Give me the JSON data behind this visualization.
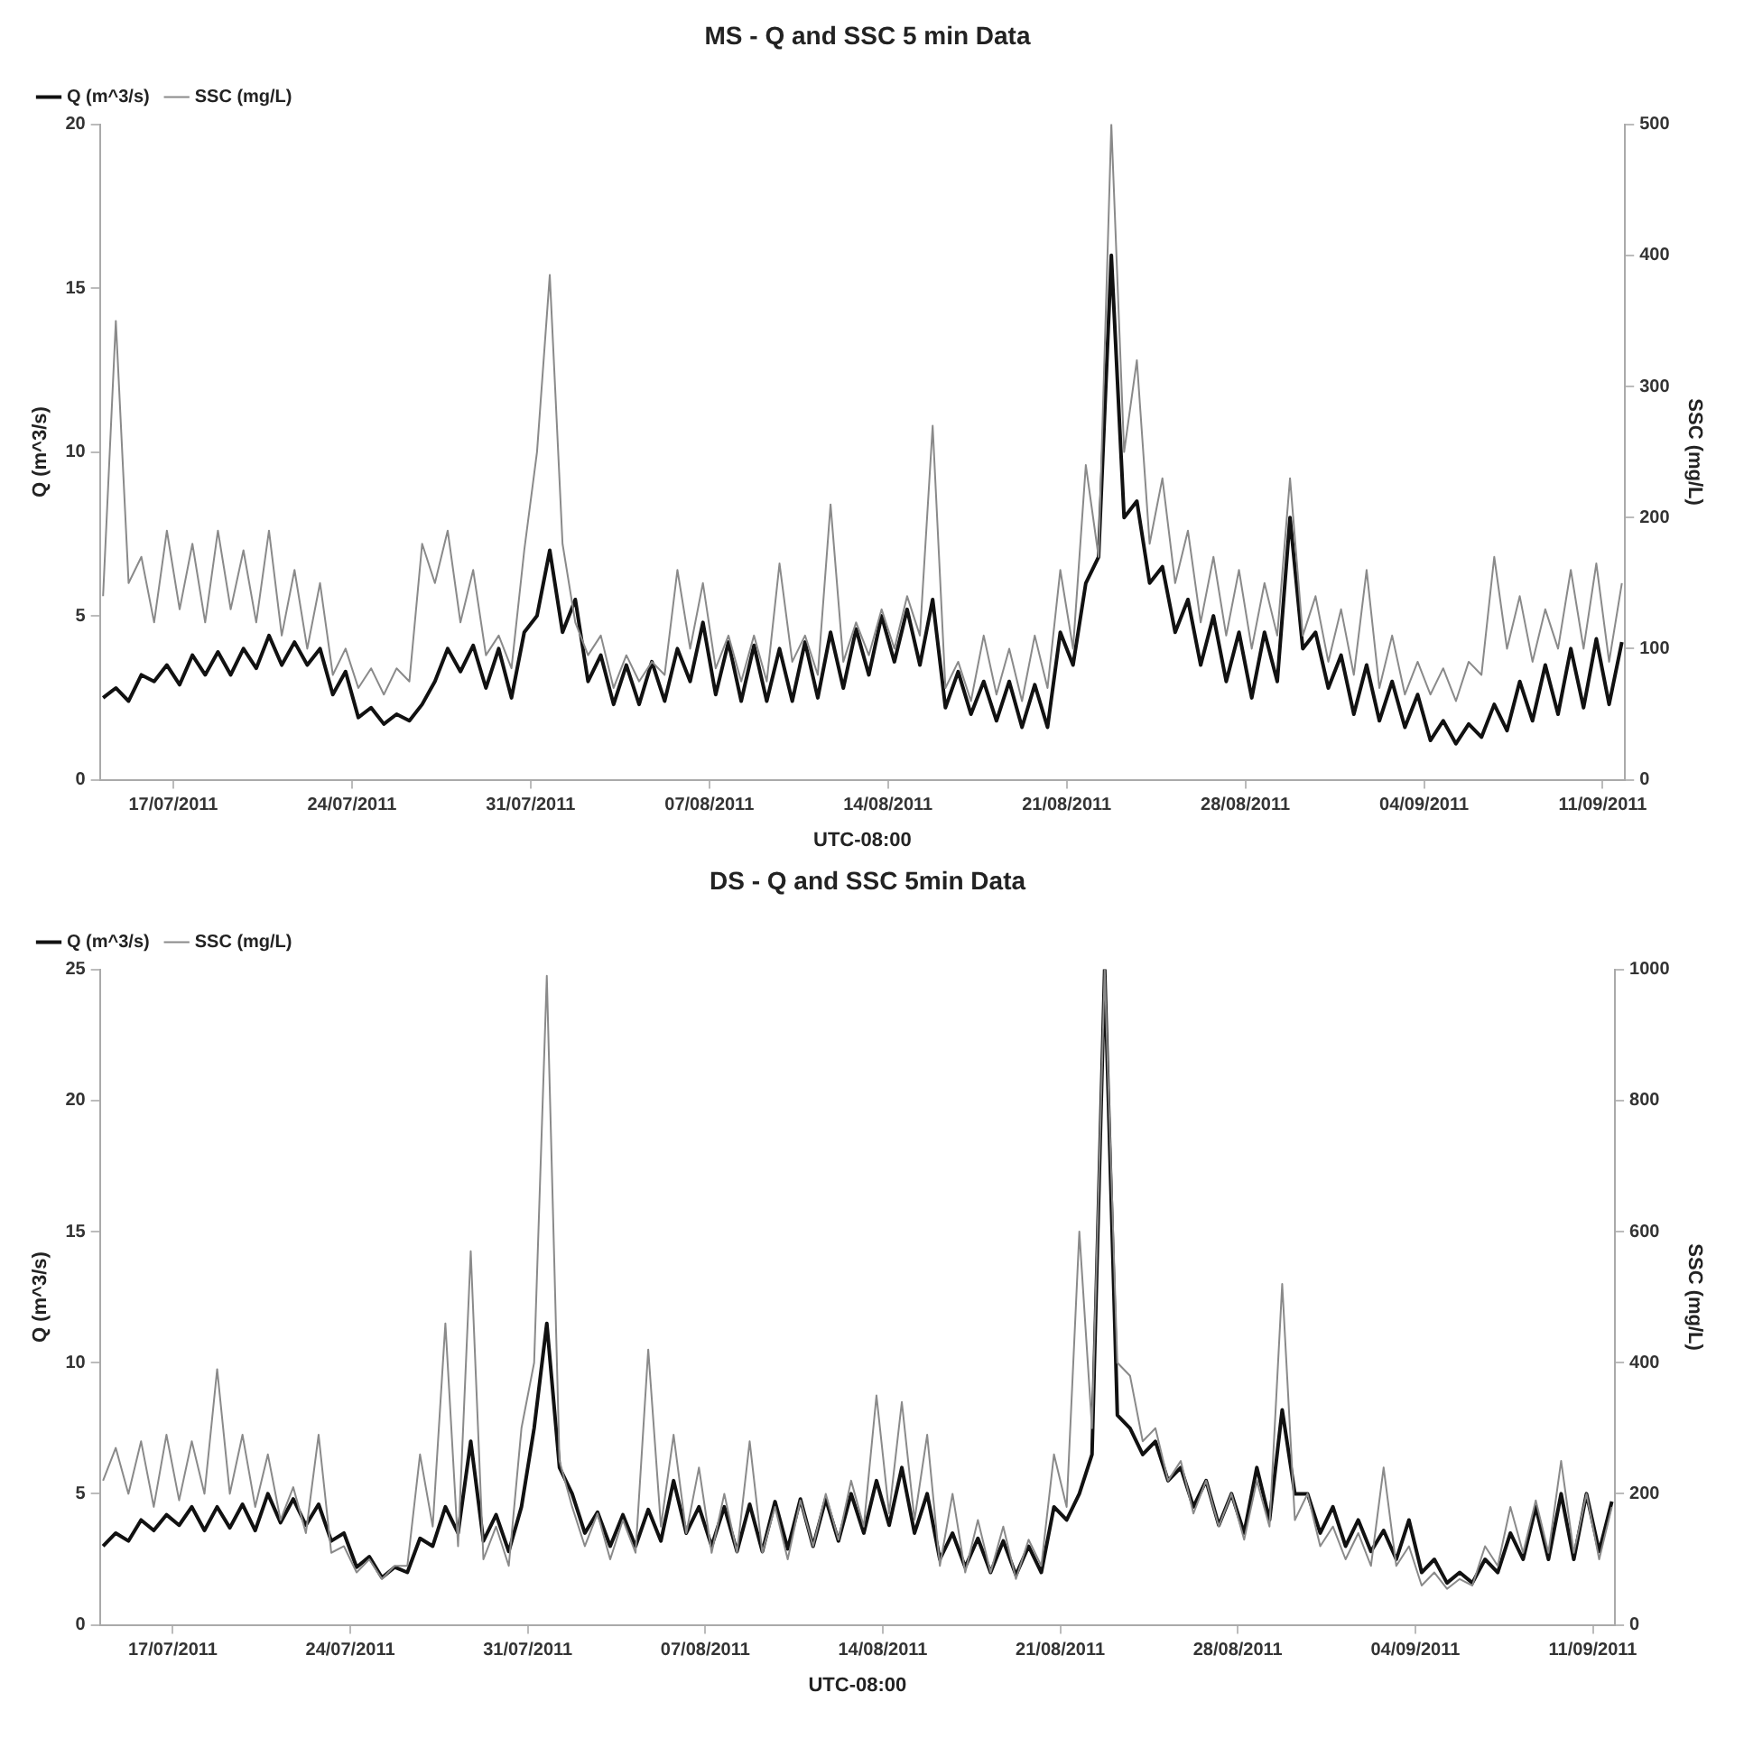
{
  "chart_data": [
    {
      "type": "line",
      "title": "MS - Q and SSC 5 min Data",
      "xlabel": "UTC-08:00",
      "ylabel": "Q (m^3/s)",
      "y2label": "SSC (mg/L)",
      "legend": "top left",
      "grid": false,
      "marker": "none",
      "xlim": [
        "2011-07-14T03:00",
        "2011-09-11T21:00"
      ],
      "xticks": [
        {
          "value": "2011-07-17",
          "label": "17/07/2011"
        },
        {
          "value": "2011-07-24",
          "label": "24/07/2011"
        },
        {
          "value": "2011-07-31",
          "label": "31/07/2011"
        },
        {
          "value": "2011-08-07",
          "label": "07/08/2011"
        },
        {
          "value": "2011-08-14",
          "label": "14/08/2011"
        },
        {
          "value": "2011-08-21",
          "label": "21/08/2011"
        },
        {
          "value": "2011-08-28",
          "label": "28/08/2011"
        },
        {
          "value": "2011-09-04",
          "label": "04/09/2011"
        },
        {
          "value": "2011-09-11",
          "label": "11/09/2011"
        }
      ],
      "ylim": [
        0,
        20
      ],
      "yticks": [
        0,
        5,
        10,
        15,
        20
      ],
      "y2lim": [
        0,
        500
      ],
      "y2ticks": [
        0,
        100,
        200,
        300,
        400,
        500
      ],
      "x": [
        "2011-07-14T06:00",
        "2011-07-14T18:00",
        "2011-07-15T06:00",
        "2011-07-15T18:00",
        "2011-07-16T06:00",
        "2011-07-16T18:00",
        "2011-07-17T06:00",
        "2011-07-17T18:00",
        "2011-07-18T06:00",
        "2011-07-18T18:00",
        "2011-07-19T06:00",
        "2011-07-19T18:00",
        "2011-07-20T06:00",
        "2011-07-20T18:00",
        "2011-07-21T06:00",
        "2011-07-21T18:00",
        "2011-07-22T06:00",
        "2011-07-22T18:00",
        "2011-07-23T06:00",
        "2011-07-23T18:00",
        "2011-07-24T06:00",
        "2011-07-24T18:00",
        "2011-07-25T06:00",
        "2011-07-25T18:00",
        "2011-07-26T06:00",
        "2011-07-26T18:00",
        "2011-07-27T06:00",
        "2011-07-27T18:00",
        "2011-07-28T06:00",
        "2011-07-28T18:00",
        "2011-07-29T06:00",
        "2011-07-29T18:00",
        "2011-07-30T06:00",
        "2011-07-30T18:00",
        "2011-07-31T06:00",
        "2011-07-31T18:00",
        "2011-08-01T06:00",
        "2011-08-01T18:00",
        "2011-08-02T06:00",
        "2011-08-02T18:00",
        "2011-08-03T06:00",
        "2011-08-03T18:00",
        "2011-08-04T06:00",
        "2011-08-04T18:00",
        "2011-08-05T06:00",
        "2011-08-05T18:00",
        "2011-08-06T06:00",
        "2011-08-06T18:00",
        "2011-08-07T06:00",
        "2011-08-07T18:00",
        "2011-08-08T06:00",
        "2011-08-08T18:00",
        "2011-08-09T06:00",
        "2011-08-09T18:00",
        "2011-08-10T06:00",
        "2011-08-10T18:00",
        "2011-08-11T06:00",
        "2011-08-11T18:00",
        "2011-08-12T06:00",
        "2011-08-12T18:00",
        "2011-08-13T06:00",
        "2011-08-13T18:00",
        "2011-08-14T06:00",
        "2011-08-14T18:00",
        "2011-08-15T06:00",
        "2011-08-15T18:00",
        "2011-08-16T06:00",
        "2011-08-16T18:00",
        "2011-08-17T06:00",
        "2011-08-17T18:00",
        "2011-08-18T06:00",
        "2011-08-18T18:00",
        "2011-08-19T06:00",
        "2011-08-19T18:00",
        "2011-08-20T06:00",
        "2011-08-20T18:00",
        "2011-08-21T06:00",
        "2011-08-21T18:00",
        "2011-08-22T06:00",
        "2011-08-22T18:00",
        "2011-08-23T06:00",
        "2011-08-23T18:00",
        "2011-08-24T06:00",
        "2011-08-24T18:00",
        "2011-08-25T06:00",
        "2011-08-25T18:00",
        "2011-08-26T06:00",
        "2011-08-26T18:00",
        "2011-08-27T06:00",
        "2011-08-27T18:00",
        "2011-08-28T06:00",
        "2011-08-28T18:00",
        "2011-08-29T06:00",
        "2011-08-29T18:00",
        "2011-08-30T06:00",
        "2011-08-30T18:00",
        "2011-08-31T06:00",
        "2011-08-31T18:00",
        "2011-09-01T06:00",
        "2011-09-01T18:00",
        "2011-09-02T06:00",
        "2011-09-02T18:00",
        "2011-09-03T06:00",
        "2011-09-03T18:00",
        "2011-09-04T06:00",
        "2011-09-04T18:00",
        "2011-09-05T06:00",
        "2011-09-05T18:00",
        "2011-09-06T06:00",
        "2011-09-06T18:00",
        "2011-09-07T06:00",
        "2011-09-07T18:00",
        "2011-09-08T06:00",
        "2011-09-08T18:00",
        "2011-09-09T06:00",
        "2011-09-09T18:00",
        "2011-09-10T06:00",
        "2011-09-10T18:00",
        "2011-09-11T06:00",
        "2011-09-11T18:00"
      ],
      "series": [
        {
          "name": "SSC (mg/L)",
          "color": "#8a8a8a",
          "axis": "y2",
          "values": [
            140,
            350,
            150,
            170,
            120,
            190,
            130,
            180,
            120,
            190,
            130,
            175,
            120,
            190,
            110,
            160,
            100,
            150,
            80,
            100,
            70,
            85,
            65,
            85,
            75,
            180,
            150,
            190,
            120,
            160,
            95,
            110,
            85,
            175,
            250,
            385,
            180,
            120,
            95,
            110,
            70,
            95,
            75,
            90,
            80,
            160,
            100,
            150,
            85,
            110,
            75,
            110,
            75,
            165,
            90,
            110,
            80,
            210,
            90,
            120,
            95,
            130,
            100,
            140,
            110,
            270,
            70,
            90,
            60,
            110,
            65,
            100,
            60,
            110,
            70,
            160,
            100,
            240,
            170,
            500,
            250,
            320,
            180,
            230,
            150,
            190,
            120,
            170,
            110,
            160,
            100,
            150,
            110,
            230,
            110,
            140,
            90,
            130,
            80,
            160,
            70,
            110,
            65,
            90,
            65,
            85,
            60,
            90,
            80,
            170,
            100,
            140,
            90,
            130,
            100,
            160,
            100,
            165,
            90,
            150
          ]
        },
        {
          "name": "Q (m^3/s)",
          "color": "#111111",
          "values": [
            2.5,
            2.8,
            2.4,
            3.2,
            3.0,
            3.5,
            2.9,
            3.8,
            3.2,
            3.9,
            3.2,
            4.0,
            3.4,
            4.4,
            3.5,
            4.2,
            3.5,
            4.0,
            2.6,
            3.3,
            1.9,
            2.2,
            1.7,
            2.0,
            1.8,
            2.3,
            3.0,
            4.0,
            3.3,
            4.1,
            2.8,
            4.0,
            2.5,
            4.5,
            5.0,
            7.0,
            4.5,
            5.5,
            3.0,
            3.8,
            2.3,
            3.5,
            2.3,
            3.6,
            2.4,
            4.0,
            3.0,
            4.8,
            2.6,
            4.2,
            2.4,
            4.1,
            2.4,
            4.0,
            2.4,
            4.2,
            2.5,
            4.5,
            2.8,
            4.6,
            3.2,
            5.0,
            3.6,
            5.2,
            3.5,
            5.5,
            2.2,
            3.3,
            2.0,
            3.0,
            1.8,
            3.0,
            1.6,
            2.9,
            1.6,
            4.5,
            3.5,
            6.0,
            6.8,
            16.0,
            8.0,
            8.5,
            6.0,
            6.5,
            4.5,
            5.5,
            3.5,
            5.0,
            3.0,
            4.5,
            2.5,
            4.5,
            3.0,
            8.0,
            4.0,
            4.5,
            2.8,
            3.8,
            2.0,
            3.5,
            1.8,
            3.0,
            1.6,
            2.6,
            1.2,
            1.8,
            1.1,
            1.7,
            1.3,
            2.3,
            1.5,
            3.0,
            1.8,
            3.5,
            2.0,
            4.0,
            2.2,
            4.3,
            2.3,
            4.2
          ]
        }
      ]
    },
    {
      "type": "line",
      "title": "DS - Q and SSC 5min Data",
      "xlabel": "UTC-08:00",
      "ylabel": "Q (m^3/s)",
      "y2label": "SSC (mg/L)",
      "legend": "top left",
      "grid": false,
      "marker": "none",
      "xlim": [
        "2011-07-14T03:00",
        "2011-09-11T21:00"
      ],
      "xticks": [
        {
          "value": "2011-07-17",
          "label": "17/07/2011"
        },
        {
          "value": "2011-07-24",
          "label": "24/07/2011"
        },
        {
          "value": "2011-07-31",
          "label": "31/07/2011"
        },
        {
          "value": "2011-08-07",
          "label": "07/08/2011"
        },
        {
          "value": "2011-08-14",
          "label": "14/08/2011"
        },
        {
          "value": "2011-08-21",
          "label": "21/08/2011"
        },
        {
          "value": "2011-08-28",
          "label": "28/08/2011"
        },
        {
          "value": "2011-09-04",
          "label": "04/09/2011"
        },
        {
          "value": "2011-09-11",
          "label": "11/09/2011"
        }
      ],
      "ylim": [
        0,
        25
      ],
      "yticks": [
        0,
        5,
        10,
        15,
        20,
        25
      ],
      "y2lim": [
        0,
        1000
      ],
      "y2ticks": [
        0,
        200,
        400,
        600,
        800,
        1000
      ],
      "x": [
        "2011-07-14T06:00",
        "2011-07-14T18:00",
        "2011-07-15T06:00",
        "2011-07-15T18:00",
        "2011-07-16T06:00",
        "2011-07-16T18:00",
        "2011-07-17T06:00",
        "2011-07-17T18:00",
        "2011-07-18T06:00",
        "2011-07-18T18:00",
        "2011-07-19T06:00",
        "2011-07-19T18:00",
        "2011-07-20T06:00",
        "2011-07-20T18:00",
        "2011-07-21T06:00",
        "2011-07-21T18:00",
        "2011-07-22T06:00",
        "2011-07-22T18:00",
        "2011-07-23T06:00",
        "2011-07-23T18:00",
        "2011-07-24T06:00",
        "2011-07-24T18:00",
        "2011-07-25T06:00",
        "2011-07-25T18:00",
        "2011-07-26T06:00",
        "2011-07-26T18:00",
        "2011-07-27T06:00",
        "2011-07-27T18:00",
        "2011-07-28T06:00",
        "2011-07-28T18:00",
        "2011-07-29T06:00",
        "2011-07-29T18:00",
        "2011-07-30T06:00",
        "2011-07-30T18:00",
        "2011-07-31T06:00",
        "2011-07-31T18:00",
        "2011-08-01T06:00",
        "2011-08-01T18:00",
        "2011-08-02T06:00",
        "2011-08-02T18:00",
        "2011-08-03T06:00",
        "2011-08-03T18:00",
        "2011-08-04T06:00",
        "2011-08-04T18:00",
        "2011-08-05T06:00",
        "2011-08-05T18:00",
        "2011-08-06T06:00",
        "2011-08-06T18:00",
        "2011-08-07T06:00",
        "2011-08-07T18:00",
        "2011-08-08T06:00",
        "2011-08-08T18:00",
        "2011-08-09T06:00",
        "2011-08-09T18:00",
        "2011-08-10T06:00",
        "2011-08-10T18:00",
        "2011-08-11T06:00",
        "2011-08-11T18:00",
        "2011-08-12T06:00",
        "2011-08-12T18:00",
        "2011-08-13T06:00",
        "2011-08-13T18:00",
        "2011-08-14T06:00",
        "2011-08-14T18:00",
        "2011-08-15T06:00",
        "2011-08-15T18:00",
        "2011-08-16T06:00",
        "2011-08-16T18:00",
        "2011-08-17T06:00",
        "2011-08-17T18:00",
        "2011-08-18T06:00",
        "2011-08-18T18:00",
        "2011-08-19T06:00",
        "2011-08-19T18:00",
        "2011-08-20T06:00",
        "2011-08-20T18:00",
        "2011-08-21T06:00",
        "2011-08-21T18:00",
        "2011-08-22T06:00",
        "2011-08-22T18:00",
        "2011-08-23T06:00",
        "2011-08-23T18:00",
        "2011-08-24T06:00",
        "2011-08-24T18:00",
        "2011-08-25T06:00",
        "2011-08-25T18:00",
        "2011-08-26T06:00",
        "2011-08-26T18:00",
        "2011-08-27T06:00",
        "2011-08-27T18:00",
        "2011-08-28T06:00",
        "2011-08-28T18:00",
        "2011-08-29T06:00",
        "2011-08-29T18:00",
        "2011-08-30T06:00",
        "2011-08-30T18:00",
        "2011-08-31T06:00",
        "2011-08-31T18:00",
        "2011-09-01T06:00",
        "2011-09-01T18:00",
        "2011-09-02T06:00",
        "2011-09-02T18:00",
        "2011-09-03T06:00",
        "2011-09-03T18:00",
        "2011-09-04T06:00",
        "2011-09-04T18:00",
        "2011-09-05T06:00",
        "2011-09-05T18:00",
        "2011-09-06T06:00",
        "2011-09-06T18:00",
        "2011-09-07T06:00",
        "2011-09-07T18:00",
        "2011-09-08T06:00",
        "2011-09-08T18:00",
        "2011-09-09T06:00",
        "2011-09-09T18:00",
        "2011-09-10T06:00",
        "2011-09-10T18:00",
        "2011-09-11T06:00",
        "2011-09-11T18:00"
      ],
      "series": [
        {
          "name": "SSC (mg/L)",
          "color": "#8a8a8a",
          "axis": "y2",
          "values": [
            220,
            270,
            200,
            280,
            180,
            290,
            190,
            280,
            200,
            390,
            200,
            290,
            180,
            260,
            160,
            210,
            140,
            290,
            110,
            120,
            80,
            100,
            70,
            90,
            90,
            260,
            150,
            460,
            120,
            570,
            100,
            150,
            90,
            300,
            400,
            990,
            250,
            180,
            120,
            170,
            100,
            160,
            110,
            420,
            150,
            290,
            140,
            240,
            110,
            200,
            110,
            280,
            110,
            180,
            100,
            190,
            120,
            200,
            130,
            220,
            150,
            350,
            170,
            340,
            160,
            290,
            90,
            200,
            80,
            160,
            80,
            150,
            70,
            130,
            90,
            260,
            180,
            600,
            300,
            1000,
            400,
            380,
            280,
            300,
            220,
            250,
            170,
            220,
            150,
            200,
            130,
            220,
            150,
            520,
            160,
            200,
            120,
            150,
            100,
            140,
            90,
            240,
            90,
            120,
            60,
            80,
            55,
            70,
            60,
            120,
            90,
            180,
            110,
            190,
            110,
            250,
            110,
            200,
            100,
            180
          ]
        },
        {
          "name": "Q (m^3/s)",
          "color": "#111111",
          "values": [
            3.0,
            3.5,
            3.2,
            4.0,
            3.6,
            4.2,
            3.8,
            4.5,
            3.6,
            4.5,
            3.7,
            4.6,
            3.6,
            5.0,
            3.9,
            4.8,
            3.8,
            4.6,
            3.2,
            3.5,
            2.2,
            2.6,
            1.8,
            2.2,
            2.0,
            3.3,
            3.0,
            4.5,
            3.5,
            7.0,
            3.2,
            4.2,
            2.8,
            4.5,
            7.5,
            11.5,
            6.0,
            5.0,
            3.5,
            4.3,
            3.0,
            4.2,
            3.0,
            4.4,
            3.2,
            5.5,
            3.5,
            4.5,
            3.0,
            4.5,
            2.8,
            4.6,
            2.8,
            4.7,
            2.9,
            4.8,
            3.0,
            4.8,
            3.2,
            5.0,
            3.5,
            5.5,
            3.8,
            6.0,
            3.5,
            5.0,
            2.5,
            3.5,
            2.2,
            3.3,
            2.0,
            3.2,
            1.9,
            3.0,
            2.0,
            4.5,
            4.0,
            5.0,
            6.5,
            25,
            8.0,
            7.5,
            6.5,
            7.0,
            5.5,
            6.0,
            4.5,
            5.5,
            3.8,
            5.0,
            3.5,
            6.0,
            4.0,
            8.2,
            5.0,
            5.0,
            3.5,
            4.5,
            3.0,
            4.0,
            2.8,
            3.6,
            2.5,
            4.0,
            2.0,
            2.5,
            1.6,
            2.0,
            1.6,
            2.5,
            2.0,
            3.5,
            2.5,
            4.5,
            2.5,
            5.0,
            2.5,
            5.0,
            2.8,
            4.7
          ]
        }
      ]
    }
  ]
}
